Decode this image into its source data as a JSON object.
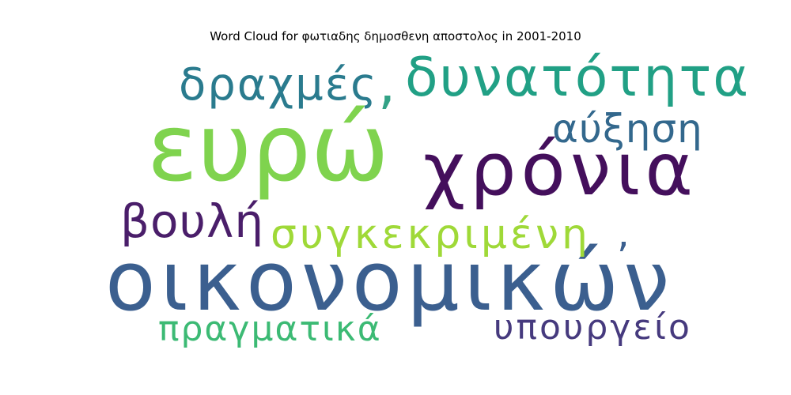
{
  "chart_data": {
    "type": "wordcloud",
    "title": "Word Cloud for φωτιαδης δημοσθενη αποστολος in 2001-2010",
    "words": [
      {
        "text": "ευρώ",
        "color": "#7fd34e"
      },
      {
        "text": "οικονομικών",
        "color": "#3b5f8f"
      },
      {
        "text": "χρόνια",
        "color": "#440f5c"
      },
      {
        "text": "δυνατότητα",
        "color": "#21a085"
      },
      {
        "text": "δραχμές",
        "color": "#2a7b8e"
      },
      {
        "text": "αύξηση",
        "color": "#33688d"
      },
      {
        "text": "συγκεκριμένη",
        "color": "#9fd938"
      },
      {
        "text": "βουλή",
        "color": "#4a1e6a"
      },
      {
        "text": "πραγματικά",
        "color": "#3cba74"
      },
      {
        "text": "υπουργείο",
        "color": "#463a7e"
      },
      {
        "text": ",",
        "color": "#33a286"
      },
      {
        "text": ",",
        "color": "#3b5f8f"
      }
    ]
  }
}
